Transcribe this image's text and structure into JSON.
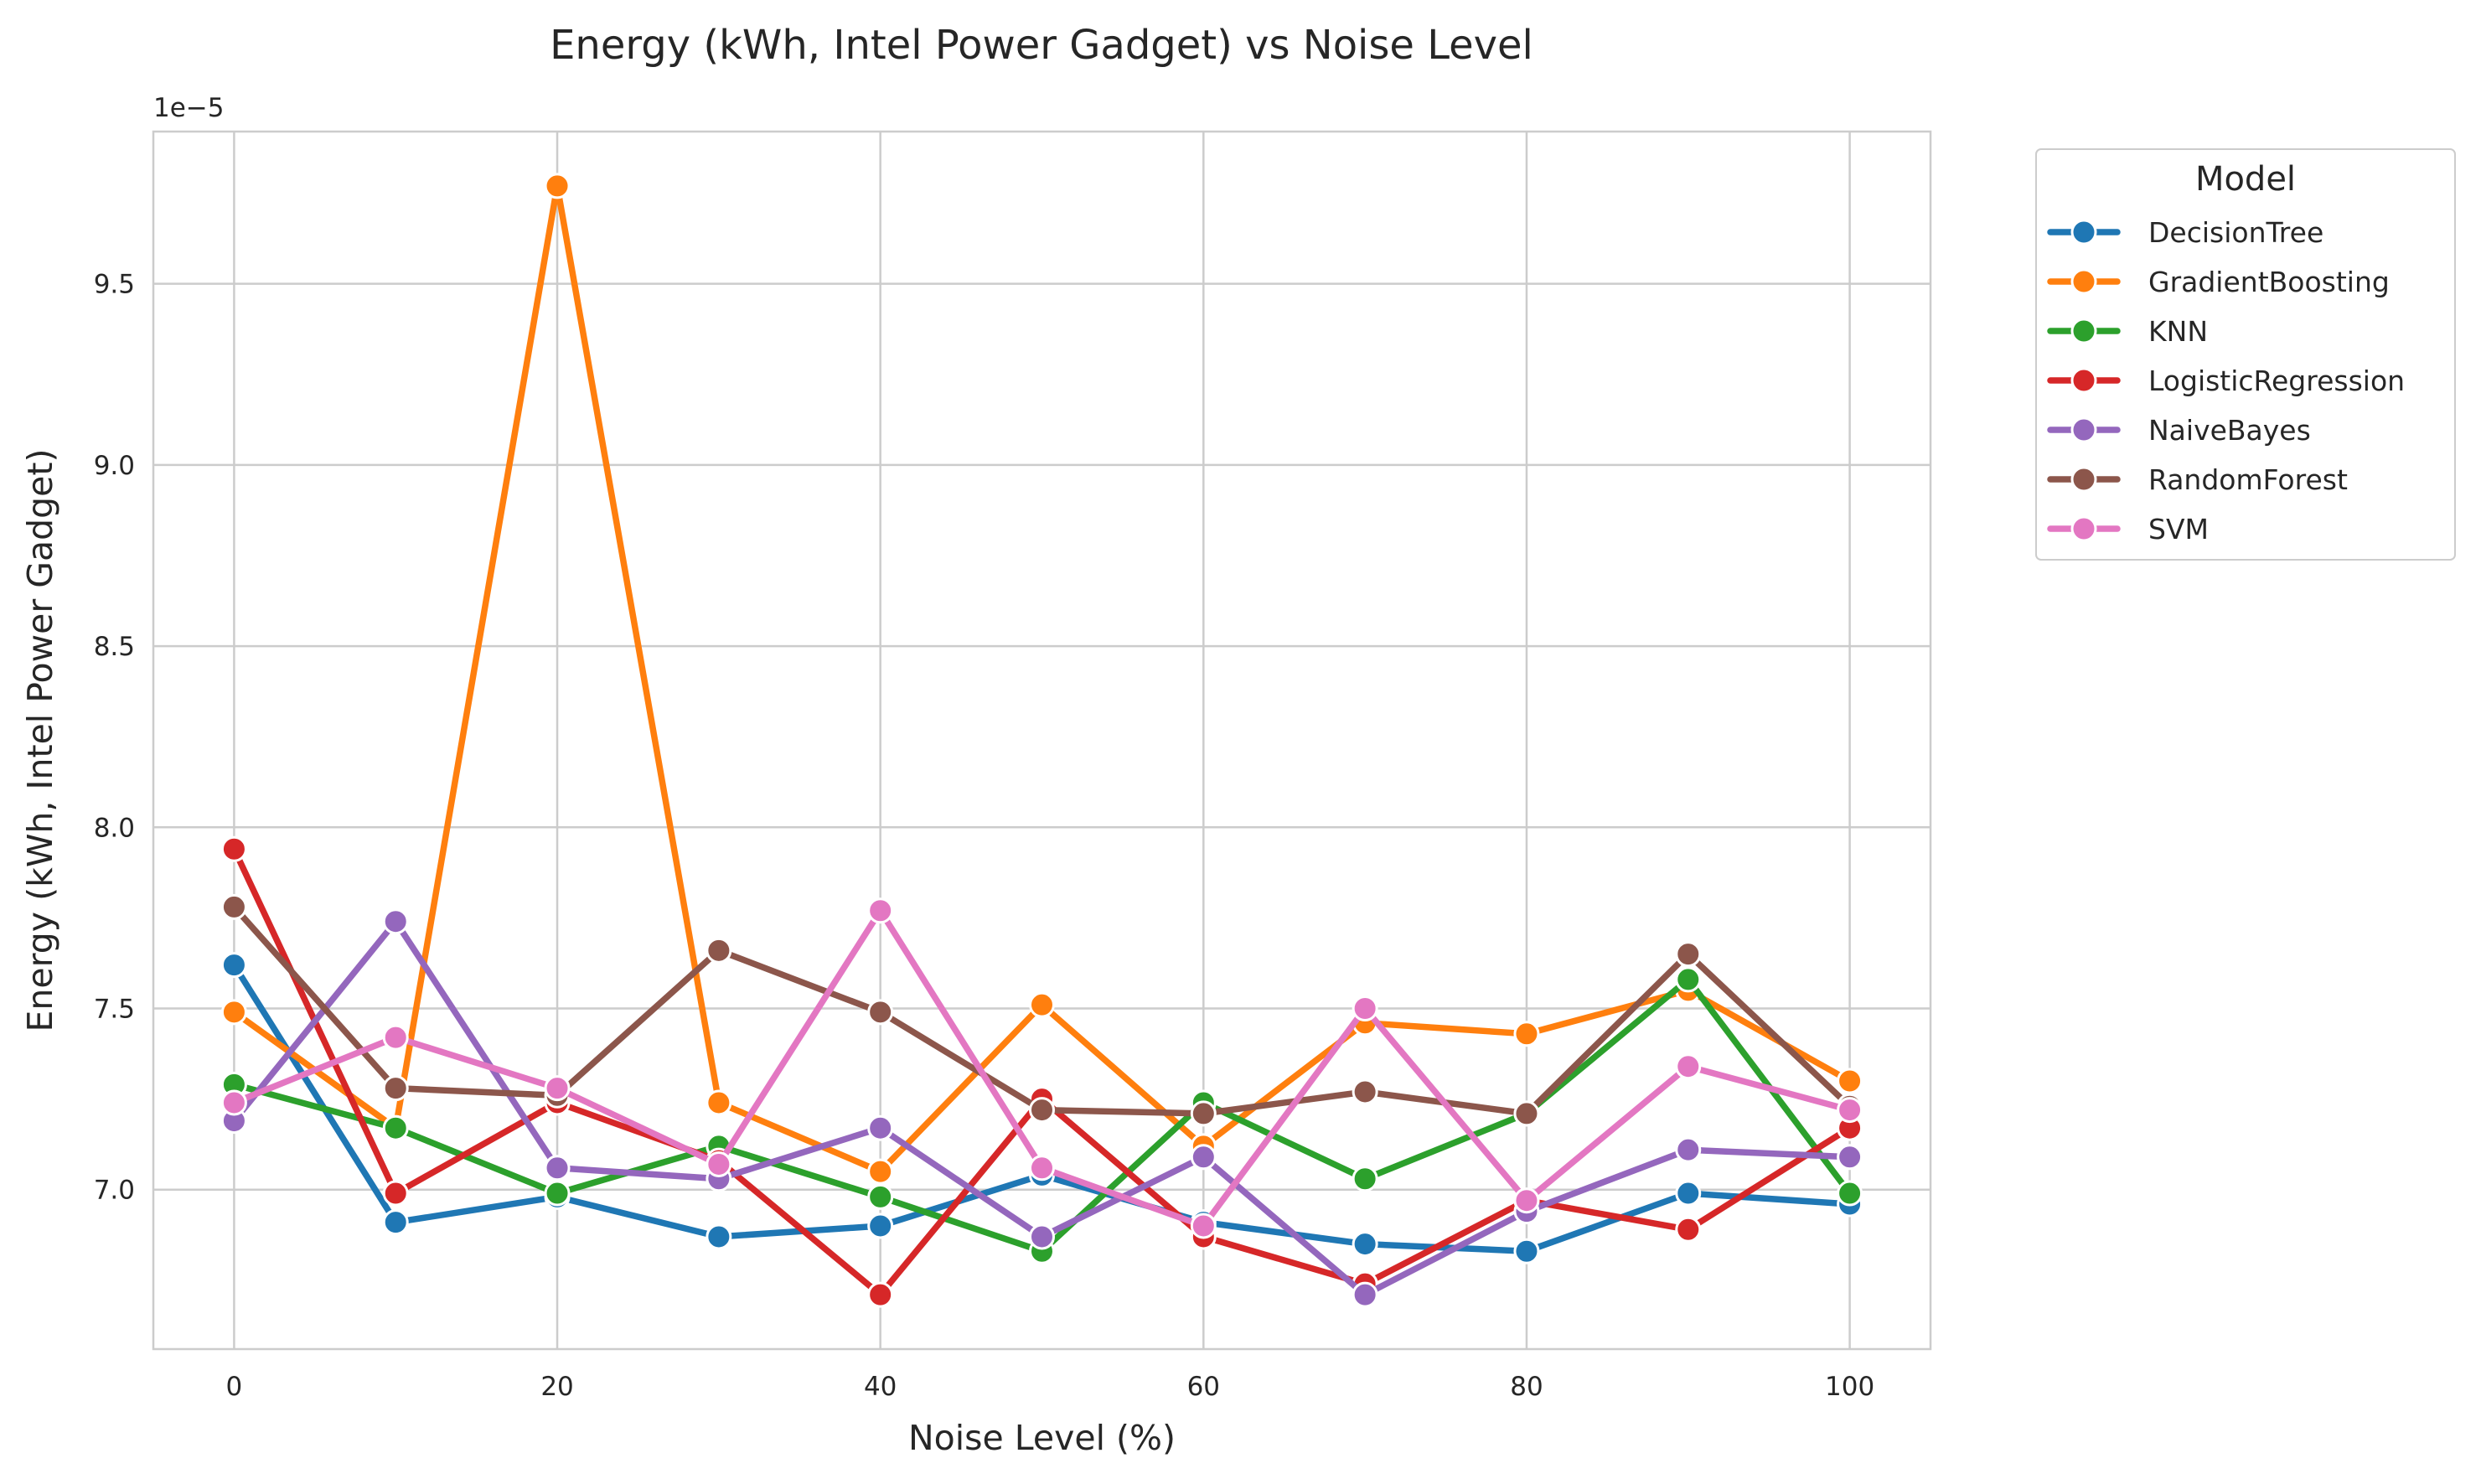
{
  "chart_data": {
    "type": "line",
    "title": "Energy (kWh, Intel Power Gadget) vs Noise Level",
    "xlabel": "Noise Level (%)",
    "ylabel": "Energy (kWh, Intel Power Gadget)",
    "y_scale_note": "1e−5",
    "x": [
      0,
      10,
      20,
      30,
      40,
      50,
      60,
      70,
      80,
      90,
      100
    ],
    "x_ticks": [
      0,
      20,
      40,
      60,
      80,
      100
    ],
    "y_ticks": [
      7.0,
      7.5,
      8.0,
      8.5,
      9.0,
      9.5
    ],
    "y_tick_labels": [
      "7.0",
      "7.5",
      "8.0",
      "8.5",
      "9.0",
      "9.5"
    ],
    "xlim": [
      -5,
      105
    ],
    "ylim": [
      6.56,
      9.92
    ],
    "grid": true,
    "legend": {
      "title": "Model",
      "placement": "outside top-right"
    },
    "series": [
      {
        "name": "DecisionTree",
        "color": "#1f77b4",
        "values": [
          7.62,
          6.91,
          6.98,
          6.87,
          6.9,
          7.04,
          6.91,
          6.85,
          6.83,
          6.99,
          6.96
        ]
      },
      {
        "name": "GradientBoosting",
        "color": "#ff7f0e",
        "values": [
          7.49,
          7.17,
          9.77,
          7.24,
          7.05,
          7.51,
          7.12,
          7.46,
          7.43,
          7.55,
          7.3
        ]
      },
      {
        "name": "KNN",
        "color": "#2ca02c",
        "values": [
          7.29,
          7.17,
          6.99,
          7.12,
          6.98,
          6.83,
          7.24,
          7.03,
          7.21,
          7.58,
          6.99
        ]
      },
      {
        "name": "LogisticRegression",
        "color": "#d62728",
        "values": [
          7.94,
          6.99,
          7.24,
          7.08,
          6.71,
          7.25,
          6.87,
          6.74,
          6.97,
          6.89,
          7.17
        ]
      },
      {
        "name": "NaiveBayes",
        "color": "#9467bd",
        "values": [
          7.19,
          7.74,
          7.06,
          7.03,
          7.17,
          6.87,
          7.09,
          6.71,
          6.94,
          7.11,
          7.09
        ]
      },
      {
        "name": "RandomForest",
        "color": "#8c564b",
        "values": [
          7.78,
          7.28,
          7.26,
          7.66,
          7.49,
          7.22,
          7.21,
          7.27,
          7.21,
          7.65,
          7.23
        ]
      },
      {
        "name": "SVM",
        "color": "#e377c2",
        "values": [
          7.24,
          7.42,
          7.28,
          7.07,
          7.77,
          7.06,
          6.9,
          7.5,
          6.97,
          7.34,
          7.22
        ]
      }
    ]
  }
}
